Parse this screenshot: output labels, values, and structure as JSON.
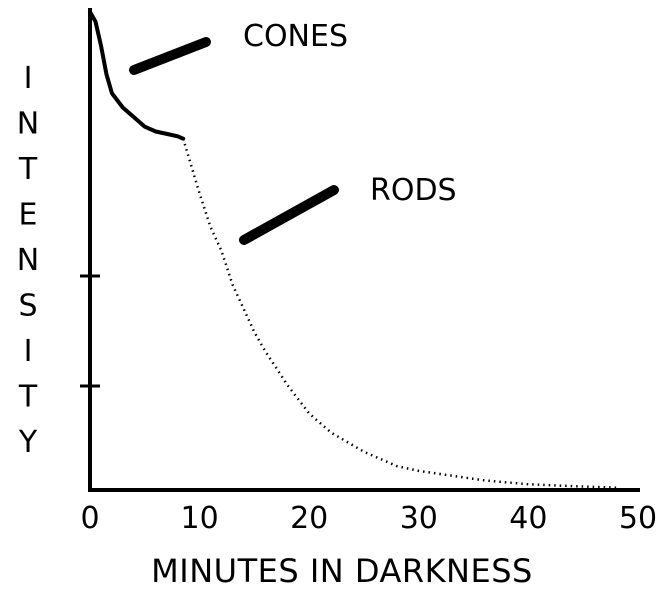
{
  "chart_data": {
    "type": "line",
    "title": "",
    "xlabel": "MINUTES IN DARKNESS",
    "ylabel": "INTENSITY",
    "xlim": [
      0,
      50
    ],
    "ylim": [
      0,
      1
    ],
    "x_ticks": [
      "0",
      "10",
      "20",
      "30",
      "40",
      "50"
    ],
    "y_ticks_labeled": false,
    "grid": false,
    "legend": "none",
    "series": [
      {
        "name": "CONES",
        "style": "solid",
        "x": [
          0,
          0.5,
          1,
          1.5,
          2,
          3,
          4,
          5,
          6,
          7,
          8,
          8.5
        ],
        "y": [
          1.0,
          0.98,
          0.93,
          0.87,
          0.83,
          0.8,
          0.78,
          0.76,
          0.75,
          0.745,
          0.74,
          0.735
        ]
      },
      {
        "name": "RODS",
        "style": "dotted",
        "x": [
          8.5,
          10,
          11,
          12,
          13,
          14,
          15,
          16,
          18,
          20,
          22,
          25,
          28,
          30,
          33,
          36,
          40,
          44,
          48
        ],
        "y": [
          0.735,
          0.62,
          0.55,
          0.5,
          0.43,
          0.38,
          0.33,
          0.29,
          0.22,
          0.16,
          0.12,
          0.08,
          0.05,
          0.04,
          0.03,
          0.02,
          0.012,
          0.008,
          0.005
        ]
      }
    ],
    "annotations": [
      {
        "text": "CONES",
        "target_series": "CONES"
      },
      {
        "text": "RODS",
        "target_series": "RODS"
      }
    ]
  }
}
